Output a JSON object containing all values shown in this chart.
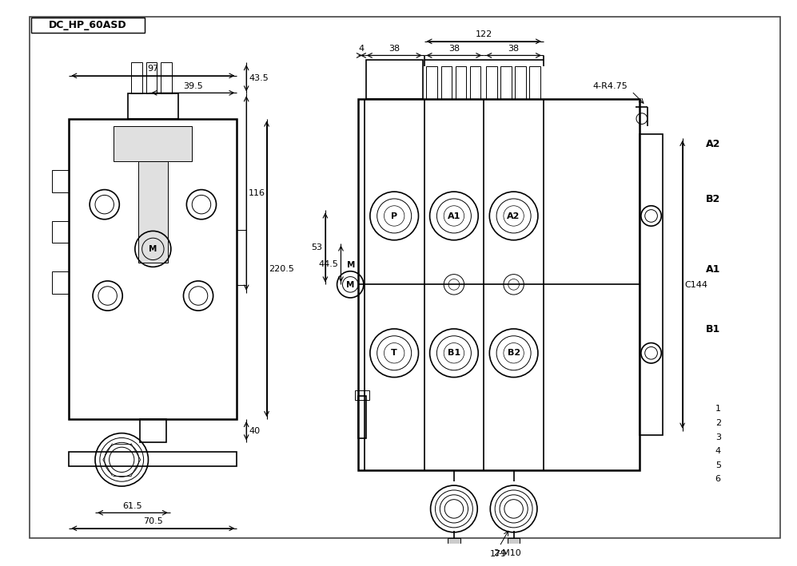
{
  "bg_color": "#ffffff",
  "line_color": "#000000",
  "title_box_text": "DC_HP_60ASD",
  "annotation_4R475": "4-R4.75",
  "annotation_2M10": "2-M10",
  "annotation_C144": "C144",
  "dim_97": "97",
  "dim_39_5": "39.5",
  "dim_43_5": "43.5",
  "dim_116": "116",
  "dim_220_5": "220.5",
  "dim_40": "40",
  "dim_61_5": "61.5",
  "dim_70_5": "70.5",
  "dim_122": "122",
  "dim_4": "4",
  "dim_38": "38",
  "dim_53": "53",
  "dim_44_5": "44.5",
  "dim_179": "179",
  "dim_144": "144",
  "label_M": "M",
  "label_P": "P",
  "label_T": "T",
  "label_A1": "A1",
  "label_B1": "B1",
  "label_A2": "A2",
  "label_B2": "B2",
  "right_labels": [
    "A2",
    "B2",
    "A1",
    "B1"
  ],
  "right_numbers": [
    "1",
    "2",
    "3",
    "4",
    "5",
    "6"
  ],
  "lw_main": 1.2,
  "lw_thin": 0.7,
  "lw_thick": 1.8,
  "fs_dim": 8,
  "fs_label": 8,
  "fs_big": 9
}
